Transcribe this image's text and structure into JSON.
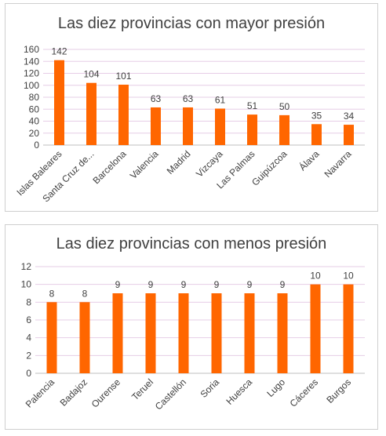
{
  "chart_data": [
    {
      "type": "bar",
      "title": "Las diez provincias con mayor presión",
      "categories": [
        "Islas Baleares",
        "Santa Cruz de...",
        "Barcelona",
        "Valencia",
        "Madrid",
        "Vizcaya",
        "Las Palmas",
        "Guipúzcoa",
        "Álava",
        "Navarra"
      ],
      "values": [
        142,
        104,
        101,
        63,
        63,
        61,
        51,
        50,
        35,
        34
      ],
      "ylim": [
        0,
        160
      ],
      "yticks": [
        0,
        20,
        40,
        60,
        80,
        100,
        120,
        140,
        160
      ],
      "bar_color": "#ff6600",
      "grid": true,
      "legend": "none"
    },
    {
      "type": "bar",
      "title": "Las diez provincias con menos presión",
      "categories": [
        "Palencia",
        "Badajoz",
        "Ourense",
        "Teruel",
        "Castellón",
        "Soria",
        "Huesca",
        "Lugo",
        "Cáceres",
        "Burgos"
      ],
      "values": [
        8,
        8,
        9,
        9,
        9,
        9,
        9,
        9,
        10,
        10
      ],
      "ylim": [
        0,
        12
      ],
      "yticks": [
        0,
        2,
        4,
        6,
        8,
        10,
        12
      ],
      "bar_color": "#ff6600",
      "grid": true,
      "legend": "none"
    }
  ]
}
